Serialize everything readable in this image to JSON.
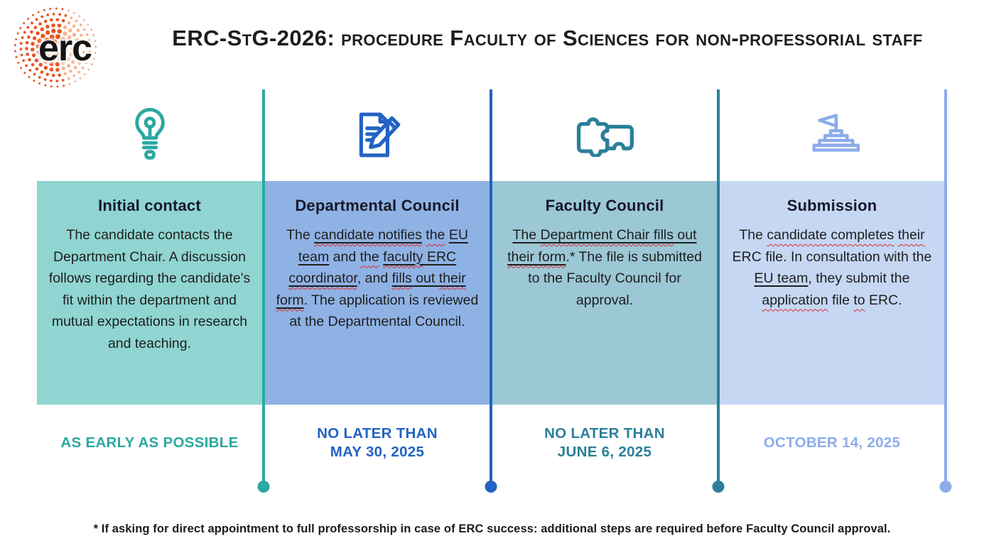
{
  "logo": {
    "text": "erc",
    "dot_color": "#E8531F",
    "dot_color_light": "#F6B493"
  },
  "header": {
    "title": "ERC-StG-2026: procedure Faculty of Sciences for non-professorial staff"
  },
  "columns": [
    {
      "id": "initial-contact",
      "icon": "lightbulb-icon",
      "accent": "#2BA8A0",
      "box_bg": "#90D5D1",
      "title": "Initial contact",
      "body": [
        {
          "t": "The candidate contacts the Department Chair. A discussion follows regarding the candidate's fit within the department and mutual expectations in research and teaching.",
          "s": ""
        }
      ],
      "deadline": "AS EARLY AS POSSIBLE"
    },
    {
      "id": "departmental-council",
      "icon": "document-pencil-icon",
      "accent": "#2263C3",
      "box_bg": "#8FB2E4",
      "title": "Departmental Council",
      "body": [
        {
          "t": "The ",
          "s": ""
        },
        {
          "t": "candidate notifies",
          "s": "uw"
        },
        {
          "t": " ",
          "s": ""
        },
        {
          "t": "the",
          "s": "w"
        },
        {
          "t": " ",
          "s": ""
        },
        {
          "t": "EU team",
          "s": "u"
        },
        {
          "t": " and ",
          "s": ""
        },
        {
          "t": "the",
          "s": "w"
        },
        {
          "t": " ",
          "s": ""
        },
        {
          "t": "faculty",
          "s": "uw"
        },
        {
          "t": " ",
          "s": "u"
        },
        {
          "t": "ERC ",
          "s": "u"
        },
        {
          "t": "coordinator",
          "s": "uw"
        },
        {
          "t": ", and ",
          "s": ""
        },
        {
          "t": "fills",
          "s": "uw"
        },
        {
          "t": " out ",
          "s": "u"
        },
        {
          "t": "their form",
          "s": "uw"
        },
        {
          "t": ". The application is reviewed at the Departmental Council.",
          "s": ""
        }
      ],
      "deadline": "NO LATER THAN\nMAY 30, 2025"
    },
    {
      "id": "faculty-council",
      "icon": "puzzle-icon",
      "accent": "#2B7F99",
      "box_bg": "#9CC7D5",
      "title": "Faculty Council",
      "body": [
        {
          "t": "The ",
          "s": "u"
        },
        {
          "t": "Department Chair fills",
          "s": "uw"
        },
        {
          "t": " out ",
          "s": "u"
        },
        {
          "t": "their form",
          "s": "uw"
        },
        {
          "t": ".* The file is submitted to the Faculty Council for approval.",
          "s": ""
        }
      ],
      "deadline": "NO LATER THAN\nJUNE 6, 2025"
    },
    {
      "id": "submission",
      "icon": "stairs-flag-icon",
      "accent": "#8CACEA",
      "box_bg": "#C5D7F3",
      "title": "Submission",
      "body": [
        {
          "t": "The ",
          "s": ""
        },
        {
          "t": "candidate completes",
          "s": "w"
        },
        {
          "t": " ",
          "s": ""
        },
        {
          "t": "their",
          "s": "w"
        },
        {
          "t": " ERC file. In consultation with the ",
          "s": ""
        },
        {
          "t": "EU team",
          "s": "u"
        },
        {
          "t": ", they submit the ",
          "s": ""
        },
        {
          "t": "application",
          "s": "w"
        },
        {
          "t": " file ",
          "s": ""
        },
        {
          "t": "to",
          "s": "w"
        },
        {
          "t": " ERC.",
          "s": ""
        }
      ],
      "deadline": "OCTOBER 14, 2025"
    }
  ],
  "footnote": "* If asking for direct appointment to full professorship in case of ERC success: additional steps are required before Faculty Council approval."
}
